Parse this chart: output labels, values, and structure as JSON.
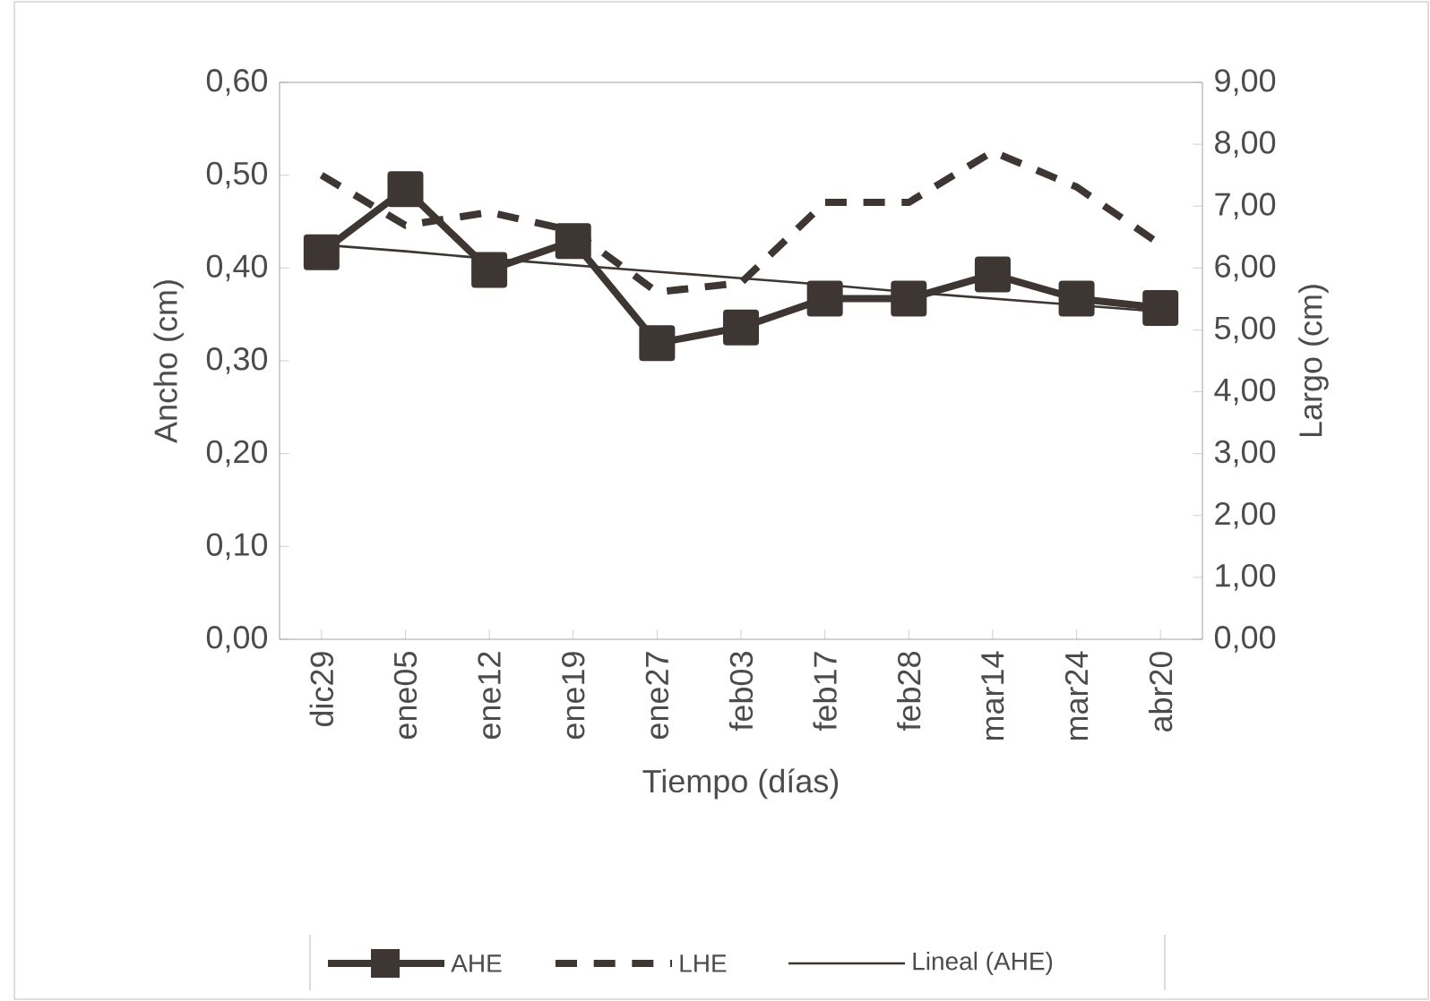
{
  "chart_data": {
    "type": "line",
    "xlabel": "Tiempo (días)",
    "ylabel": "Ancho (cm)",
    "y2label": "Largo (cm)",
    "categories": [
      "dic29",
      "ene05",
      "ene12",
      "ene19",
      "ene27",
      "feb03",
      "feb17",
      "feb28",
      "mar14",
      "mar24",
      "abr20"
    ],
    "ylim": [
      0,
      0.6
    ],
    "yticks": [
      {
        "value": 0,
        "label": "0,00"
      },
      {
        "value": 0.1,
        "label": "0,10"
      },
      {
        "value": 0.2,
        "label": "0,20"
      },
      {
        "value": 0.3,
        "label": "0,30"
      },
      {
        "value": 0.4,
        "label": "0,40"
      },
      {
        "value": 0.5,
        "label": "0,50"
      },
      {
        "value": 0.6,
        "label": "0,60"
      }
    ],
    "y2lim": [
      0,
      9
    ],
    "y2ticks": [
      {
        "value": 0,
        "label": "0,00"
      },
      {
        "value": 1,
        "label": "1,00"
      },
      {
        "value": 2,
        "label": "2,00"
      },
      {
        "value": 3,
        "label": "3,00"
      },
      {
        "value": 4,
        "label": "4,00"
      },
      {
        "value": 5,
        "label": "5,00"
      },
      {
        "value": 6,
        "label": "6,00"
      },
      {
        "value": 7,
        "label": "7,00"
      },
      {
        "value": 8,
        "label": "8,00"
      },
      {
        "value": 9,
        "label": "9,00"
      }
    ],
    "grid": false,
    "legend": "bottom",
    "series": [
      {
        "name": "AHE",
        "color": "#3d3633",
        "marker": "square",
        "line_style": "solid",
        "values": [
          0.417,
          0.485,
          0.398,
          0.429,
          0.319,
          0.336,
          0.367,
          0.367,
          0.393,
          0.367,
          0.357
        ]
      },
      {
        "name": "LHE",
        "color": "#3d3633",
        "marker": "none",
        "line_style": "dashed",
        "axis": "y2",
        "values": [
          7.5,
          6.69,
          6.9,
          6.6,
          5.61,
          5.76,
          7.06,
          7.06,
          7.88,
          7.31,
          6.38
        ]
      },
      {
        "name": "Lineal (AHE)",
        "color": "#3d3633",
        "marker": "none",
        "line_style": "solid",
        "values": [
          0.425,
          0.418,
          0.41,
          0.403,
          0.396,
          0.389,
          0.382,
          0.374,
          0.367,
          0.36,
          0.353
        ]
      }
    ]
  }
}
